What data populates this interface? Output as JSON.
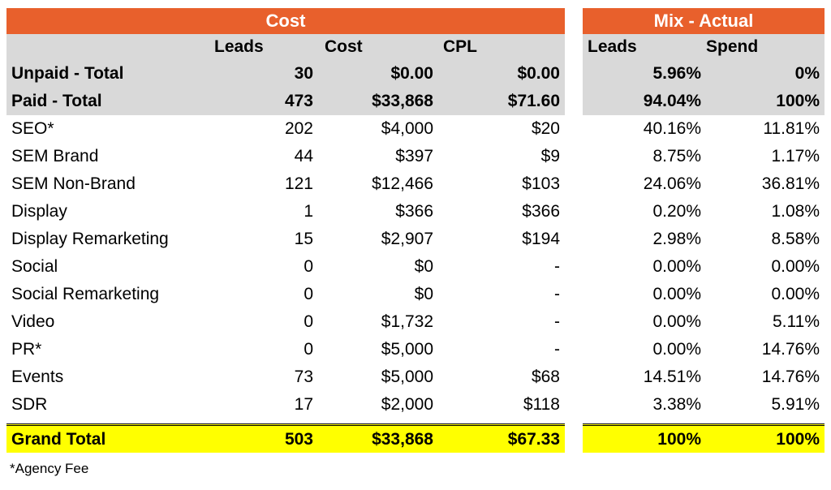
{
  "left_title": "Cost",
  "right_title": "Mix - Actual",
  "headers": {
    "leads": "Leads",
    "cost": "Cost",
    "cpl": "CPL",
    "mix_leads": "Leads",
    "mix_spend": "Spend"
  },
  "summary_rows": [
    {
      "label": "Unpaid - Total",
      "leads": "30",
      "cost": "$0.00",
      "cpl": "$0.00",
      "mix_leads": "5.96%",
      "mix_spend": "0%"
    },
    {
      "label": "Paid - Total",
      "leads": "473",
      "cost": "$33,868",
      "cpl": "$71.60",
      "mix_leads": "94.04%",
      "mix_spend": "100%"
    }
  ],
  "rows": [
    {
      "label": "SEO*",
      "leads": "202",
      "cost": "$4,000",
      "cpl": "$20",
      "mix_leads": "40.16%",
      "mix_spend": "11.81%"
    },
    {
      "label": "SEM Brand",
      "leads": "44",
      "cost": "$397",
      "cpl": "$9",
      "mix_leads": "8.75%",
      "mix_spend": "1.17%"
    },
    {
      "label": "SEM Non-Brand",
      "leads": "121",
      "cost": "$12,466",
      "cpl": "$103",
      "mix_leads": "24.06%",
      "mix_spend": "36.81%"
    },
    {
      "label": "Display",
      "leads": "1",
      "cost": "$366",
      "cpl": "$366",
      "mix_leads": "0.20%",
      "mix_spend": "1.08%"
    },
    {
      "label": "Display Remarketing",
      "leads": "15",
      "cost": "$2,907",
      "cpl": "$194",
      "mix_leads": "2.98%",
      "mix_spend": "8.58%"
    },
    {
      "label": "Social",
      "leads": "0",
      "cost": "$0",
      "cpl": "-",
      "mix_leads": "0.00%",
      "mix_spend": "0.00%"
    },
    {
      "label": "Social Remarketing",
      "leads": "0",
      "cost": "$0",
      "cpl": "-",
      "mix_leads": "0.00%",
      "mix_spend": "0.00%"
    },
    {
      "label": "Video",
      "leads": "0",
      "cost": "$1,732",
      "cpl": "-",
      "mix_leads": "0.00%",
      "mix_spend": "5.11%"
    },
    {
      "label": "PR*",
      "leads": "0",
      "cost": "$5,000",
      "cpl": "-",
      "mix_leads": "0.00%",
      "mix_spend": "14.76%"
    },
    {
      "label": "Events",
      "leads": "73",
      "cost": "$5,000",
      "cpl": "$68",
      "mix_leads": "14.51%",
      "mix_spend": "14.76%"
    },
    {
      "label": "SDR",
      "leads": "17",
      "cost": "$2,000",
      "cpl": "$118",
      "mix_leads": "3.38%",
      "mix_spend": "5.91%"
    }
  ],
  "grand_total": {
    "label": "Grand Total",
    "leads": "503",
    "cost": "$33,868",
    "cpl": "$67.33",
    "mix_leads": "100%",
    "mix_spend": "100%"
  },
  "footnote": "*Agency Fee",
  "colors": {
    "header_orange": "#E8602C",
    "header_gray": "#D9D9D9",
    "total_yellow": "#FFFF00"
  },
  "chart_data": {
    "type": "table",
    "columns": [
      "Leads",
      "Cost",
      "CPL",
      "Mix - Actual Leads",
      "Mix - Actual Spend"
    ],
    "rows": [
      [
        "Unpaid - Total",
        30,
        0.0,
        0.0,
        5.96,
        0
      ],
      [
        "Paid - Total",
        473,
        33868,
        71.6,
        94.04,
        100
      ],
      [
        "SEO*",
        202,
        4000,
        20,
        40.16,
        11.81
      ],
      [
        "SEM Brand",
        44,
        397,
        9,
        8.75,
        1.17
      ],
      [
        "SEM Non-Brand",
        121,
        12466,
        103,
        24.06,
        36.81
      ],
      [
        "Display",
        1,
        366,
        366,
        0.2,
        1.08
      ],
      [
        "Display Remarketing",
        15,
        2907,
        194,
        2.98,
        8.58
      ],
      [
        "Social",
        0,
        0,
        null,
        0.0,
        0.0
      ],
      [
        "Social Remarketing",
        0,
        0,
        null,
        0.0,
        0.0
      ],
      [
        "Video",
        0,
        1732,
        null,
        0.0,
        5.11
      ],
      [
        "PR*",
        0,
        5000,
        null,
        0.0,
        14.76
      ],
      [
        "Events",
        73,
        5000,
        68,
        14.51,
        14.76
      ],
      [
        "SDR",
        17,
        2000,
        118,
        3.38,
        5.91
      ],
      [
        "Grand Total",
        503,
        33868,
        67.33,
        100,
        100
      ]
    ]
  }
}
